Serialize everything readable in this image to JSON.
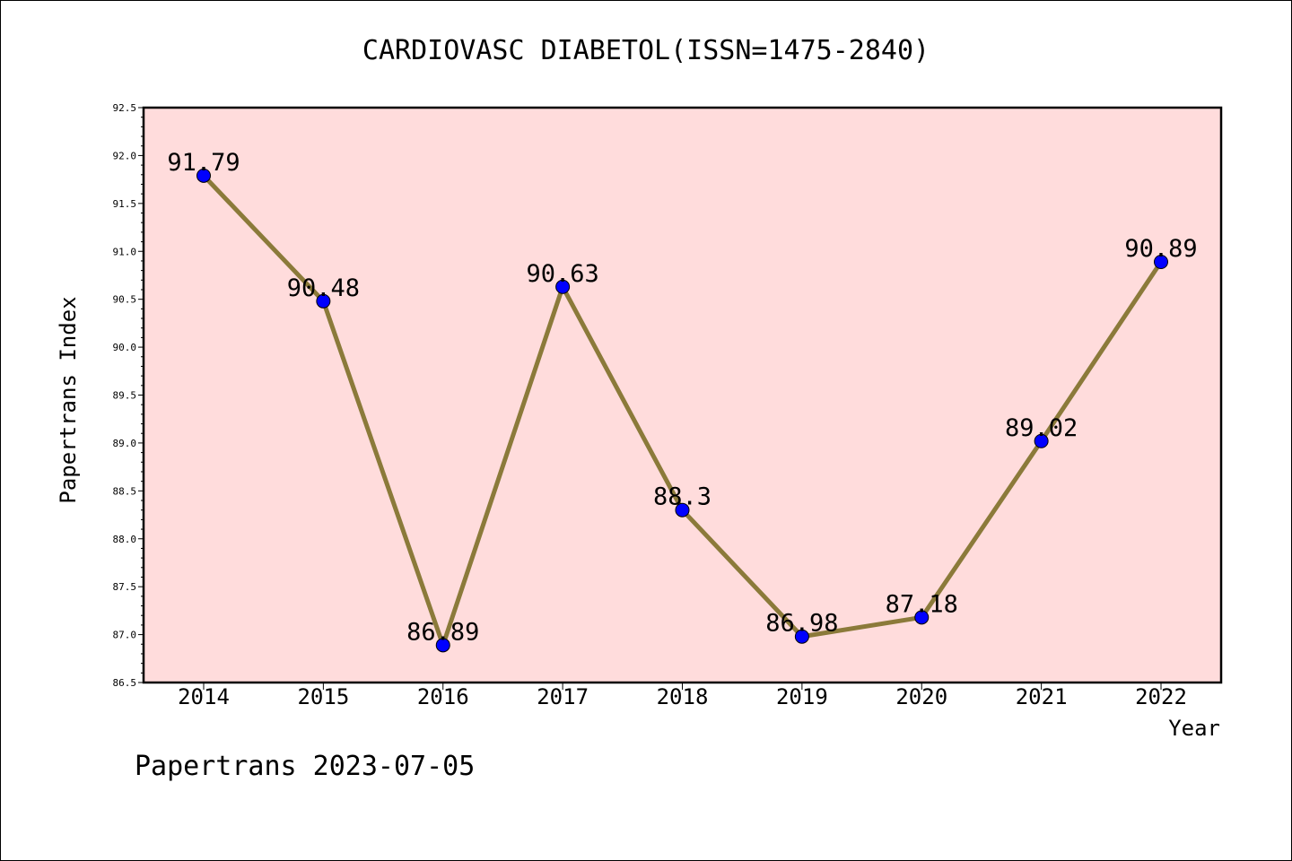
{
  "chart_data": {
    "type": "line",
    "title": "CARDIOVASC DIABETOL(ISSN=1475-2840)",
    "xlabel": "Year",
    "ylabel": "Papertrans Index",
    "footer": "Papertrans 2023-07-05",
    "categories": [
      "2014",
      "2015",
      "2016",
      "2017",
      "2018",
      "2019",
      "2020",
      "2021",
      "2022"
    ],
    "values": [
      91.79,
      90.48,
      86.89,
      90.63,
      88.3,
      86.98,
      87.18,
      89.02,
      90.89
    ],
    "data_labels": [
      "91.79",
      "90.48",
      "86.89",
      "90.63",
      "88.3",
      "86.98",
      "87.18",
      "89.02",
      "90.89"
    ],
    "yticks": [
      "86.5",
      "87.0",
      "87.5",
      "88.0",
      "88.5",
      "89.0",
      "89.5",
      "90.0",
      "90.5",
      "91.0",
      "91.5",
      "92.0",
      "92.5"
    ],
    "ylim": [
      86.5,
      92.5
    ],
    "grid": false,
    "colors": {
      "plot_background": "#ffdcdc",
      "line": "#8b7a3a",
      "marker": "#0000ff"
    }
  }
}
